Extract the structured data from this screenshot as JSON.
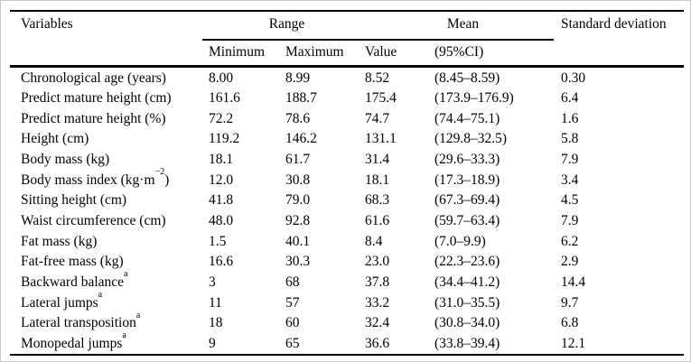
{
  "table": {
    "header": {
      "variables": "Variables",
      "range": "Range",
      "mean": "Mean",
      "standard_deviation": "Standard deviation",
      "minimum": "Minimum",
      "maximum": "Maximum",
      "value": "Value",
      "ci": "(95%CI)"
    },
    "rows": [
      {
        "variable": "Chronological age (years)",
        "sup": "",
        "post": "",
        "min": "8.00",
        "max": "8.99",
        "value": "8.52",
        "ci": "(8.45–8.59)",
        "sd": "0.30"
      },
      {
        "variable": "Predict mature height (cm)",
        "sup": "",
        "post": "",
        "min": "161.6",
        "max": "188.7",
        "value": "175.4",
        "ci": "(173.9–176.9)",
        "sd": "6.4"
      },
      {
        "variable": "Predict mature height (%)",
        "sup": "",
        "post": "",
        "min": "72.2",
        "max": "78.6",
        "value": "74.7",
        "ci": "(74.4–75.1)",
        "sd": "1.6"
      },
      {
        "variable": "Height (cm)",
        "sup": "",
        "post": "",
        "min": "119.2",
        "max": "146.2",
        "value": "131.1",
        "ci": "(129.8–32.5)",
        "sd": "5.8"
      },
      {
        "variable": "Body mass (kg)",
        "sup": "",
        "post": "",
        "min": "18.1",
        "max": "61.7",
        "value": "31.4",
        "ci": "(29.6–33.3)",
        "sd": "7.9"
      },
      {
        "variable": "Body mass index (kg·m",
        "sup": "−2",
        "post": ")",
        "min": "12.0",
        "max": "30.8",
        "value": "18.1",
        "ci": "(17.3–18.9)",
        "sd": "3.4"
      },
      {
        "variable": "Sitting height (cm)",
        "sup": "",
        "post": "",
        "min": "41.8",
        "max": "79.0",
        "value": "68.3",
        "ci": "(67.3–69.4)",
        "sd": "4.5"
      },
      {
        "variable": "Waist circumference (cm)",
        "sup": "",
        "post": "",
        "min": "48.0",
        "max": "92.8",
        "value": "61.6",
        "ci": "(59.7–63.4)",
        "sd": "7.9"
      },
      {
        "variable": "Fat mass (kg)",
        "sup": "",
        "post": "",
        "min": "1.5",
        "max": "40.1",
        "value": "8.4",
        "ci": "(7.0–9.9)",
        "sd": "6.2"
      },
      {
        "variable": "Fat-free mass (kg)",
        "sup": "",
        "post": "",
        "min": "16.6",
        "max": "30.3",
        "value": "23.0",
        "ci": "(22.3–23.6)",
        "sd": "2.9"
      },
      {
        "variable": "Backward balance",
        "sup": "a",
        "post": "",
        "min": "3",
        "max": "68",
        "value": "37.8",
        "ci": "(34.4–41.2)",
        "sd": "14.4"
      },
      {
        "variable": "Lateral jumps",
        "sup": "a",
        "post": "",
        "min": "11",
        "max": "57",
        "value": "33.2",
        "ci": "(31.0–35.5)",
        "sd": "9.7"
      },
      {
        "variable": "Lateral transposition",
        "sup": "a",
        "post": "",
        "min": "18",
        "max": "60",
        "value": "32.4",
        "ci": "(30.8–34.0)",
        "sd": "6.8"
      },
      {
        "variable": "Monopedal jumps",
        "sup": "a",
        "post": "",
        "min": "9",
        "max": "65",
        "value": "36.6",
        "ci": "(33.8–39.4)",
        "sd": "12.1"
      }
    ]
  },
  "colors": {
    "rule": "#000000",
    "text": "#000000",
    "background": "#ffffff",
    "page_border": "#c9c9c9"
  }
}
